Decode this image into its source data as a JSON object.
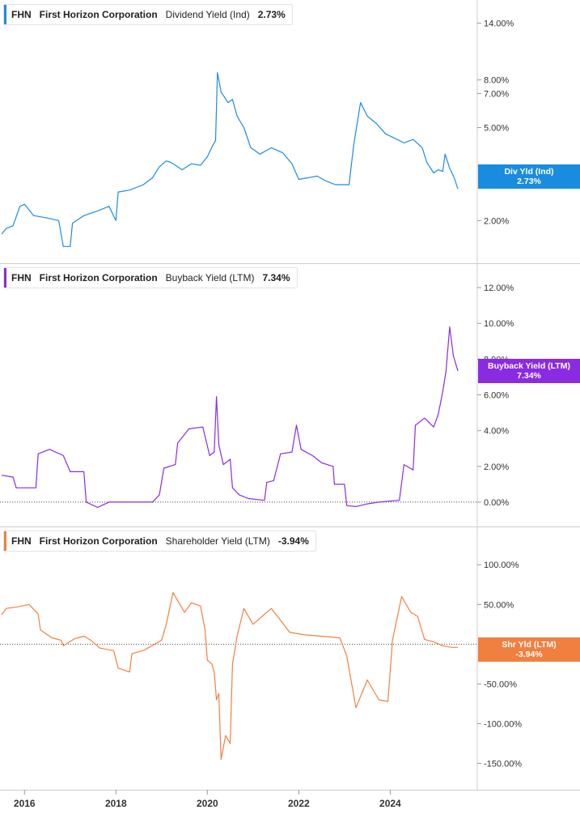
{
  "legends": [
    {
      "ticker": "FHN",
      "company": "First Horizon Corporation",
      "metric": "Dividend Yield (Ind)",
      "value": "2.73%"
    },
    {
      "ticker": "FHN",
      "company": "First Horizon Corporation",
      "metric": "Buyback Yield (LTM)",
      "value": "7.34%"
    },
    {
      "ticker": "FHN",
      "company": "First Horizon Corporation",
      "metric": "Shareholder Yield (LTM)",
      "value": "-3.94%"
    }
  ],
  "flags": [
    {
      "label": "Div Yld (Ind)",
      "value": "2.73%"
    },
    {
      "label": "Buyback Yield (LTM)",
      "value": "7.34%"
    },
    {
      "label": "Shr Yld (LTM)",
      "value": "-3.94%"
    }
  ],
  "x_ticks": [
    "2016",
    "2018",
    "2020",
    "2022",
    "2024"
  ],
  "chart_data": [
    {
      "type": "line",
      "color": "#1a8ce0",
      "y_scale": "log",
      "y_ticks": [
        "14.00%",
        "8.00%",
        "7.00%",
        "5.00%",
        "2.00%"
      ],
      "y_tick_values": [
        14,
        8,
        7,
        5,
        2
      ],
      "ylim": [
        1.4,
        16.5
      ],
      "series": [
        {
          "values": [
            [
              2015.5,
              1.75
            ],
            [
              2015.6,
              1.85
            ],
            [
              2015.75,
              1.9
            ],
            [
              2015.9,
              2.3
            ],
            [
              2016.0,
              2.35
            ],
            [
              2016.2,
              2.1
            ],
            [
              2016.5,
              2.05
            ],
            [
              2016.75,
              2.0
            ],
            [
              2016.85,
              1.55
            ],
            [
              2017.0,
              1.55
            ],
            [
              2017.05,
              1.95
            ],
            [
              2017.3,
              2.1
            ],
            [
              2017.6,
              2.2
            ],
            [
              2017.85,
              2.3
            ],
            [
              2018.0,
              2.0
            ],
            [
              2018.05,
              2.65
            ],
            [
              2018.3,
              2.7
            ],
            [
              2018.6,
              2.85
            ],
            [
              2018.8,
              3.05
            ],
            [
              2018.95,
              3.4
            ],
            [
              2019.1,
              3.6
            ],
            [
              2019.2,
              3.55
            ],
            [
              2019.3,
              3.45
            ],
            [
              2019.45,
              3.3
            ],
            [
              2019.65,
              3.5
            ],
            [
              2019.85,
              3.45
            ],
            [
              2020.0,
              3.75
            ],
            [
              2020.12,
              4.2
            ],
            [
              2020.18,
              4.4
            ],
            [
              2020.22,
              8.6
            ],
            [
              2020.3,
              7.1
            ],
            [
              2020.45,
              6.4
            ],
            [
              2020.55,
              6.6
            ],
            [
              2020.65,
              5.6
            ],
            [
              2020.8,
              5.0
            ],
            [
              2020.95,
              4.1
            ],
            [
              2021.15,
              3.85
            ],
            [
              2021.4,
              4.1
            ],
            [
              2021.65,
              3.9
            ],
            [
              2021.85,
              3.5
            ],
            [
              2022.0,
              3.0
            ],
            [
              2022.2,
              3.05
            ],
            [
              2022.4,
              3.1
            ],
            [
              2022.6,
              2.95
            ],
            [
              2022.8,
              2.85
            ],
            [
              2023.1,
              2.85
            ],
            [
              2023.2,
              4.2
            ],
            [
              2023.35,
              6.4
            ],
            [
              2023.5,
              5.6
            ],
            [
              2023.7,
              5.2
            ],
            [
              2023.9,
              4.7
            ],
            [
              2024.1,
              4.5
            ],
            [
              2024.3,
              4.3
            ],
            [
              2024.5,
              4.45
            ],
            [
              2024.7,
              4.1
            ],
            [
              2024.8,
              3.55
            ],
            [
              2024.95,
              3.2
            ],
            [
              2025.05,
              3.3
            ],
            [
              2025.15,
              3.25
            ],
            [
              2025.2,
              3.85
            ],
            [
              2025.3,
              3.35
            ],
            [
              2025.4,
              3.05
            ],
            [
              2025.48,
              2.73
            ]
          ]
        }
      ]
    },
    {
      "type": "line",
      "color": "#8a2be2",
      "y_scale": "linear",
      "y_ticks": [
        "12.00%",
        "10.00%",
        "8.00%",
        "6.00%",
        "4.00%",
        "2.00%",
        "0.00%"
      ],
      "y_tick_values": [
        12,
        10,
        8,
        6,
        4,
        2,
        0
      ],
      "ylim": [
        -1,
        13
      ],
      "series": [
        {
          "values": [
            [
              2015.5,
              1.5
            ],
            [
              2015.75,
              1.4
            ],
            [
              2015.82,
              0.8
            ],
            [
              2016.25,
              0.8
            ],
            [
              2016.3,
              2.7
            ],
            [
              2016.55,
              2.95
            ],
            [
              2016.85,
              2.6
            ],
            [
              2017.0,
              1.7
            ],
            [
              2017.3,
              1.7
            ],
            [
              2017.35,
              0.0
            ],
            [
              2017.6,
              -0.3
            ],
            [
              2017.85,
              0.0
            ],
            [
              2018.5,
              0.0
            ],
            [
              2018.8,
              0.0
            ],
            [
              2018.95,
              0.4
            ],
            [
              2019.05,
              1.9
            ],
            [
              2019.3,
              2.1
            ],
            [
              2019.35,
              3.3
            ],
            [
              2019.6,
              4.1
            ],
            [
              2019.9,
              4.2
            ],
            [
              2020.05,
              2.6
            ],
            [
              2020.15,
              2.8
            ],
            [
              2020.2,
              5.9
            ],
            [
              2020.25,
              3.2
            ],
            [
              2020.35,
              2.1
            ],
            [
              2020.5,
              2.4
            ],
            [
              2020.55,
              0.8
            ],
            [
              2020.7,
              0.4
            ],
            [
              2020.9,
              0.2
            ],
            [
              2021.25,
              0.1
            ],
            [
              2021.3,
              1.1
            ],
            [
              2021.45,
              1.2
            ],
            [
              2021.6,
              2.7
            ],
            [
              2021.85,
              2.8
            ],
            [
              2021.95,
              4.3
            ],
            [
              2022.05,
              2.95
            ],
            [
              2022.3,
              2.6
            ],
            [
              2022.5,
              2.2
            ],
            [
              2022.75,
              2.0
            ],
            [
              2022.78,
              1.0
            ],
            [
              2023.0,
              1.0
            ],
            [
              2023.05,
              -0.2
            ],
            [
              2023.25,
              -0.25
            ],
            [
              2023.5,
              -0.1
            ],
            [
              2023.75,
              0.0
            ],
            [
              2024.2,
              0.1
            ],
            [
              2024.3,
              2.1
            ],
            [
              2024.5,
              1.8
            ],
            [
              2024.55,
              4.3
            ],
            [
              2024.75,
              4.7
            ],
            [
              2024.95,
              4.2
            ],
            [
              2025.05,
              4.9
            ],
            [
              2025.15,
              6.2
            ],
            [
              2025.22,
              7.3
            ],
            [
              2025.3,
              9.8
            ],
            [
              2025.38,
              8.2
            ],
            [
              2025.48,
              7.34
            ]
          ]
        }
      ]
    },
    {
      "type": "line",
      "color": "#f08040",
      "y_scale": "linear",
      "y_ticks": [
        "100.00%",
        "50.00%",
        "-50.00%",
        "-100.00%",
        "-150.00%"
      ],
      "y_tick_values": [
        100,
        50,
        -50,
        -100,
        -150
      ],
      "ylim": [
        -175,
        140
      ],
      "series": [
        {
          "values": [
            [
              2015.5,
              37
            ],
            [
              2015.6,
              45
            ],
            [
              2015.85,
              47
            ],
            [
              2016.1,
              50
            ],
            [
              2016.3,
              38
            ],
            [
              2016.35,
              18
            ],
            [
              2016.6,
              8
            ],
            [
              2016.8,
              5
            ],
            [
              2016.85,
              -2
            ],
            [
              2017.1,
              7
            ],
            [
              2017.3,
              10
            ],
            [
              2017.45,
              5
            ],
            [
              2017.65,
              -5
            ],
            [
              2017.95,
              -8
            ],
            [
              2018.05,
              -30
            ],
            [
              2018.3,
              -35
            ],
            [
              2018.35,
              -12
            ],
            [
              2018.6,
              -8
            ],
            [
              2018.85,
              0
            ],
            [
              2019.0,
              5
            ],
            [
              2019.1,
              25
            ],
            [
              2019.25,
              65
            ],
            [
              2019.35,
              55
            ],
            [
              2019.5,
              40
            ],
            [
              2019.65,
              52
            ],
            [
              2019.85,
              48
            ],
            [
              2019.95,
              18
            ],
            [
              2020.0,
              -20
            ],
            [
              2020.1,
              -25
            ],
            [
              2020.15,
              -35
            ],
            [
              2020.2,
              -70
            ],
            [
              2020.25,
              -62
            ],
            [
              2020.3,
              -145
            ],
            [
              2020.4,
              -115
            ],
            [
              2020.5,
              -125
            ],
            [
              2020.55,
              -25
            ],
            [
              2020.65,
              10
            ],
            [
              2020.8,
              45
            ],
            [
              2021.0,
              25
            ],
            [
              2021.2,
              35
            ],
            [
              2021.4,
              45
            ],
            [
              2021.6,
              30
            ],
            [
              2021.8,
              15
            ],
            [
              2022.1,
              12
            ],
            [
              2022.5,
              10
            ],
            [
              2022.9,
              8
            ],
            [
              2023.05,
              -15
            ],
            [
              2023.25,
              -80
            ],
            [
              2023.5,
              -45
            ],
            [
              2023.75,
              -70
            ],
            [
              2023.95,
              -72
            ],
            [
              2024.05,
              5
            ],
            [
              2024.25,
              60
            ],
            [
              2024.45,
              40
            ],
            [
              2024.6,
              35
            ],
            [
              2024.75,
              6
            ],
            [
              2024.95,
              3
            ],
            [
              2025.15,
              -2
            ],
            [
              2025.35,
              -4
            ],
            [
              2025.48,
              -3.94
            ]
          ]
        }
      ]
    }
  ]
}
